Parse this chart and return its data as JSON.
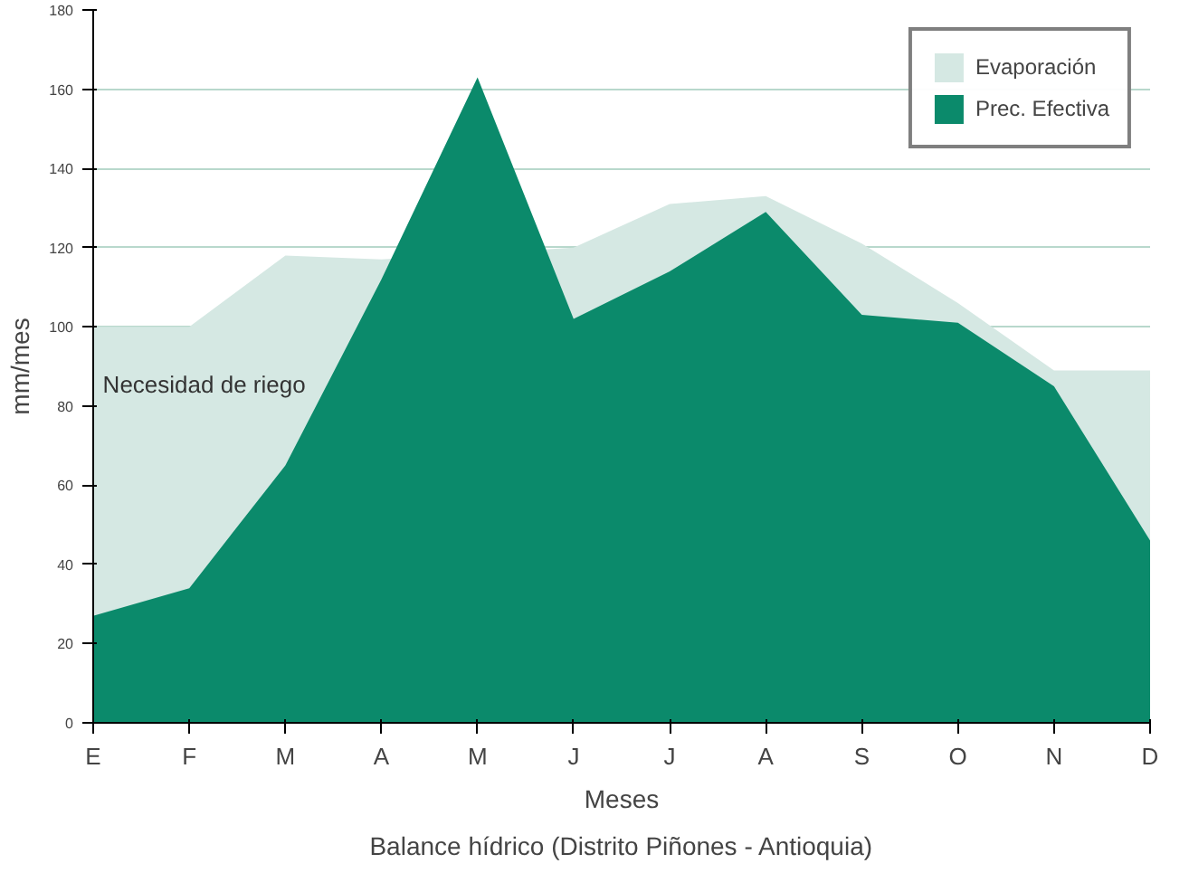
{
  "chart_data": {
    "type": "area",
    "title": "Balance hídrico (Distrito Piñones - Antioquia)",
    "xlabel": "Meses",
    "ylabel": "mm/mes",
    "categories": [
      "E",
      "F",
      "M",
      "A",
      "M",
      "J",
      "J",
      "A",
      "S",
      "O",
      "N",
      "D"
    ],
    "series": [
      {
        "name": "Evaporación",
        "color": "#d5e8e3",
        "values": [
          100,
          100,
          118,
          117,
          null,
          120,
          131,
          133,
          121,
          106,
          89,
          89
        ]
      },
      {
        "name": "Prec. Efectiva",
        "color": "#0b8a6b",
        "values": [
          27,
          34,
          65,
          112,
          163,
          102,
          114,
          129,
          103,
          101,
          85,
          46
        ]
      }
    ],
    "ylim": [
      0,
      180
    ],
    "yticks": [
      0,
      20,
      40,
      60,
      80,
      100,
      120,
      140,
      160,
      180
    ],
    "grid": "y",
    "legend": "top right",
    "annotations": [
      "Necesidad de riego"
    ]
  }
}
